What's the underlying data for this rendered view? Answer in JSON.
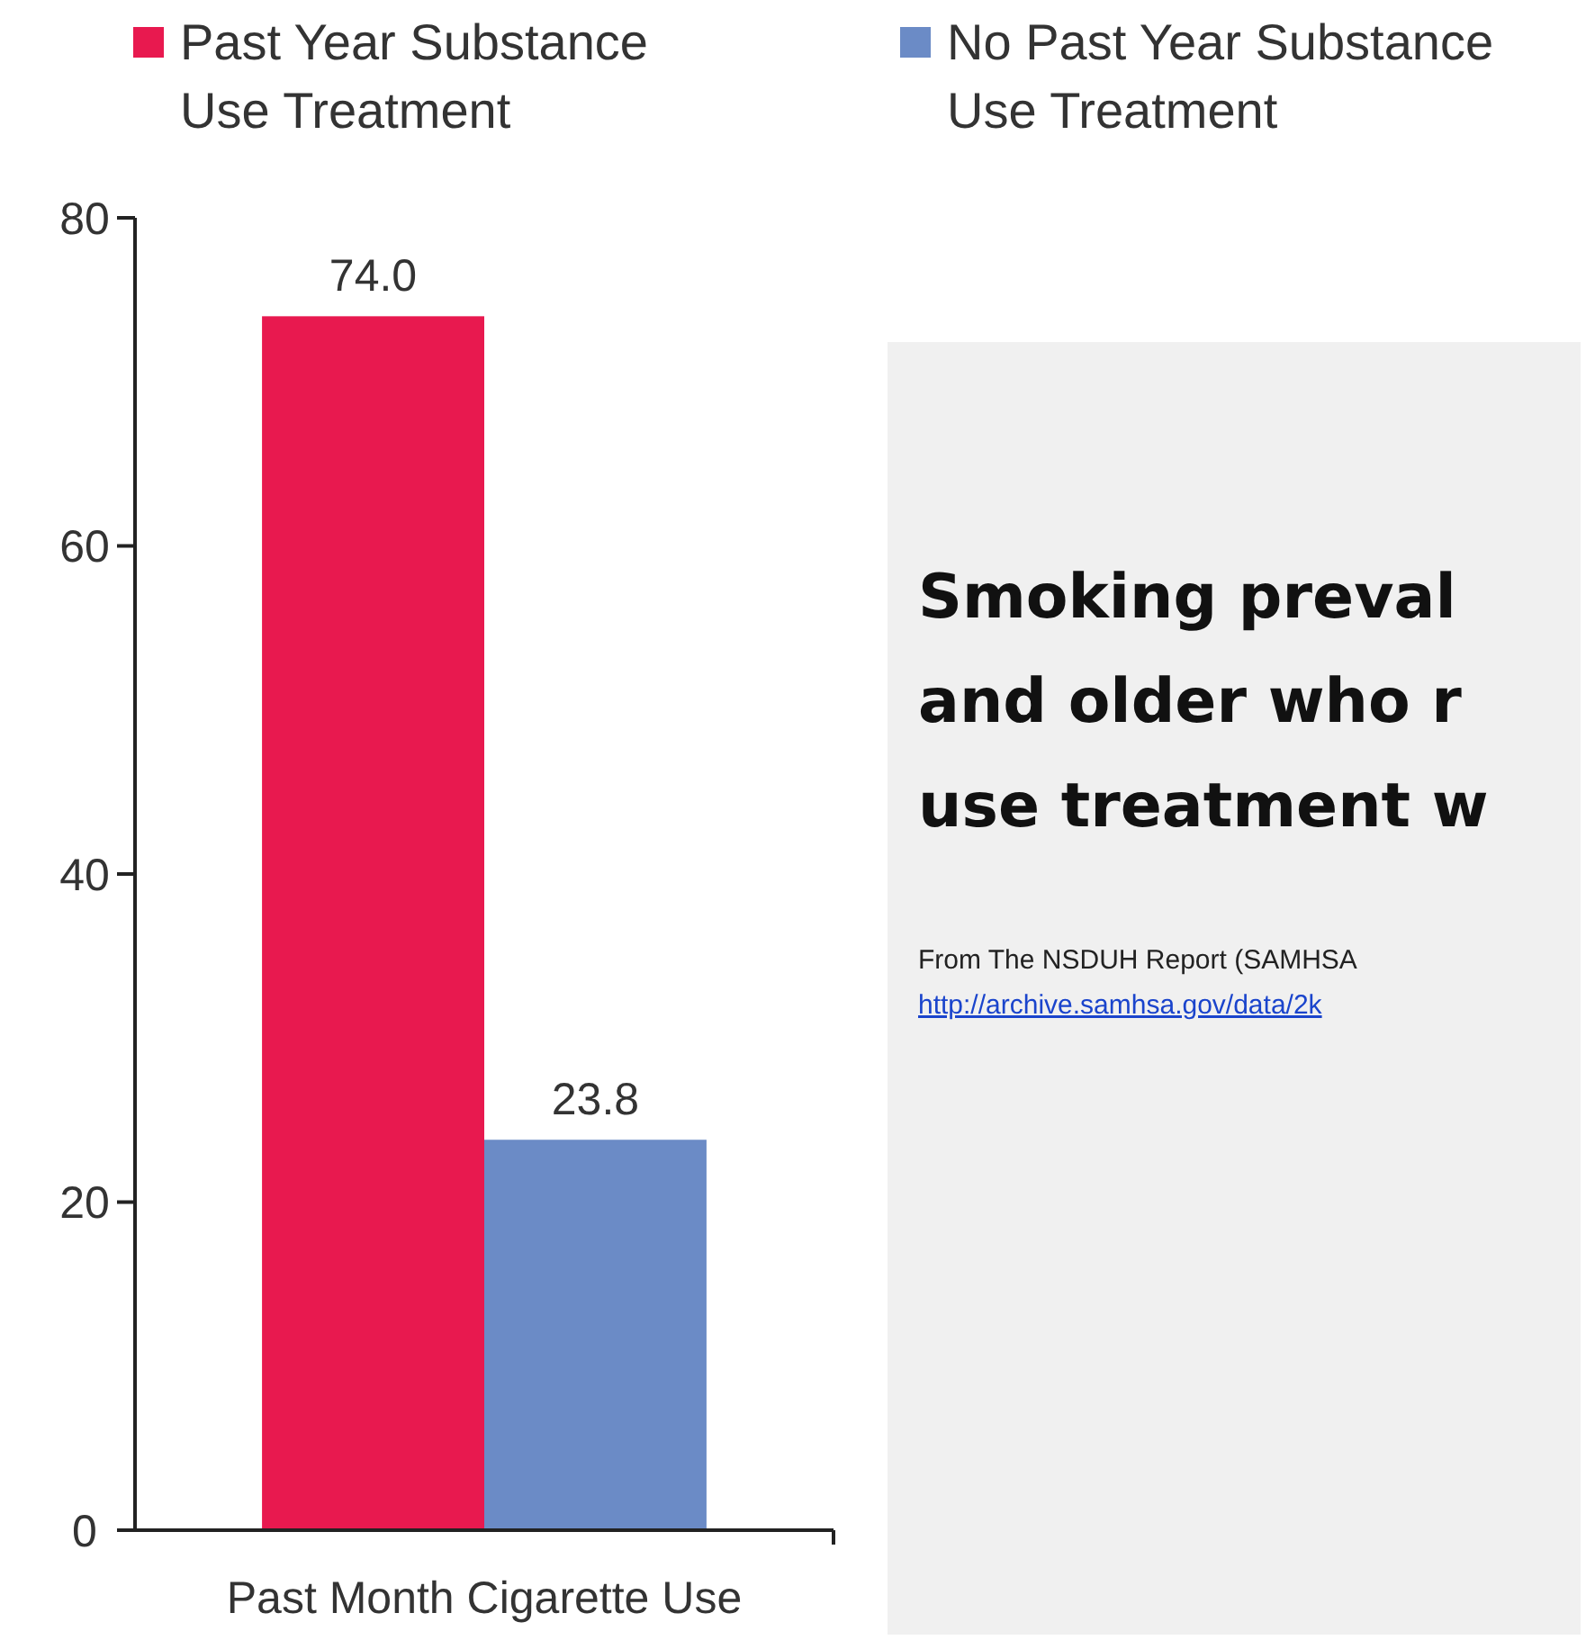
{
  "chart_data": {
    "type": "bar",
    "categories": [
      "Past Month Cigarette Use"
    ],
    "series": [
      {
        "name": "Past Year Substance Use Treatment",
        "color": "#e8194f",
        "values": [
          74.0
        ],
        "value_labels": [
          "74.0"
        ]
      },
      {
        "name": "No Past Year Substance Use Treatment",
        "color": "#6b8bc6",
        "values": [
          23.8
        ],
        "value_labels": [
          "23.8"
        ]
      }
    ],
    "ylim": [
      0,
      80
    ],
    "yticks": [
      0,
      20,
      40,
      60,
      80
    ],
    "grid": false,
    "legend": "top",
    "annotations": [
      "Smoking preval",
      "and older who r",
      "use treatment w",
      "From The NSDUH Report (SAMHSA",
      "http://archive.samhsa.gov/data/2k"
    ]
  }
}
